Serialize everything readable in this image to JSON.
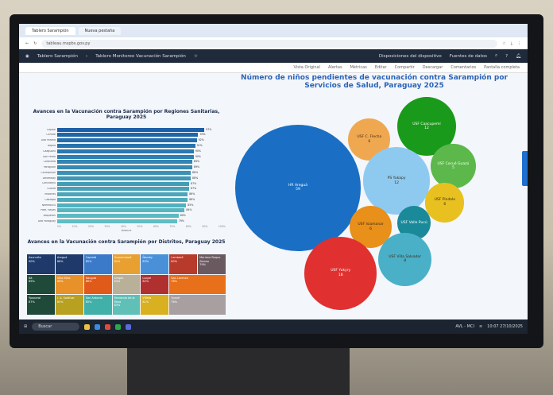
{
  "browser": {
    "tabs": [
      "Tablero Sarampión",
      "Nueva pestaña"
    ],
    "url": "tableau.mspbs.gov.py"
  },
  "toolbar": {
    "breadcrumb": [
      "Tablero Sarampión",
      "Tablero Monitoreo Vacunación Sarampión"
    ],
    "device_layouts": "Disposiciones del dispositivo",
    "data_sources": "Fuentes de datos"
  },
  "subtoolbar": [
    "Vista Original",
    "Alertas",
    "Métricas",
    "Editar",
    "Compartir",
    "Descargar",
    "Comentarios",
    "Pantalla completa"
  ],
  "bar_chart": {
    "type": "bar",
    "title": "Avances en la Vacunación contra Sarampión por Regiones Sanitarias, Paraguay 2025",
    "xlabel": "Avance",
    "xlim": [
      0,
      100
    ],
    "ticks": [
      "0%",
      "10%",
      "20%",
      "30%",
      "40%",
      "50%",
      "60%",
      "70%",
      "80%",
      "90%",
      "100%"
    ],
    "categories": [
      "Capital",
      "Central",
      "Alto Paraná",
      "Itapúa",
      "Caaguazú",
      "San Pedro",
      "Cordillera",
      "Paraguarí",
      "Concepción",
      "Amambay",
      "Canindeyú",
      "Guairá",
      "Misiones",
      "Caazapá",
      "Ñeembucú",
      "Pdte. Hayes",
      "Boquerón",
      "Alto Paraguay"
    ],
    "values": [
      97,
      93,
      92,
      91,
      90,
      90,
      89,
      89,
      88,
      88,
      87,
      87,
      86,
      86,
      85,
      84,
      80,
      79
    ],
    "color": "#1a5fa8"
  },
  "treemap": {
    "title": "Avances en la Vacunación contra Sarampión por Distritos, Paraguay 2025",
    "cells": [
      {
        "name": "Asunción",
        "pct": "90%",
        "color": "#1f3a6a"
      },
      {
        "name": "Areguá",
        "pct": "88%",
        "color": "#1f3a6a"
      },
      {
        "name": "Capiatá",
        "pct": "85%",
        "color": "#3a7ac8"
      },
      {
        "name": "Guarambaré",
        "pct": "84%",
        "color": "#e8a030"
      },
      {
        "name": "Ñemby",
        "pct": "83%",
        "color": "#4a90d8"
      },
      {
        "name": "Itá",
        "pct": "89%",
        "color": "#1f4a3a"
      },
      {
        "name": "Villa Elisa",
        "pct": "86%",
        "color": "#e8902a"
      },
      {
        "name": "Itauguá",
        "pct": "86%",
        "color": "#e05a1a"
      },
      {
        "name": "Limpio",
        "pct": "84%",
        "color": "#b8b098"
      },
      {
        "name": "Luque",
        "pct": "82%",
        "color": "#b03030"
      },
      {
        "name": "Ypacaraí",
        "pct": "87%",
        "color": "#1f4a3a"
      },
      {
        "name": "J. A. Saldívar",
        "pct": "85%",
        "color": "#b8a020"
      },
      {
        "name": "San Antonio",
        "pct": "85%",
        "color": "#40b0a8"
      },
      {
        "name": "Fernando de la Mora",
        "pct": "83%",
        "color": "#60c0b8"
      },
      {
        "name": "Villeta",
        "pct": "81%",
        "color": "#d8b020"
      },
      {
        "name": "Lambaré",
        "pct": "80%",
        "color": "#b83a2a"
      },
      {
        "name": "Mariano Roque Alonso",
        "pct": "79%",
        "color": "#6a5a60"
      },
      {
        "name": "San Lorenzo",
        "pct": "78%",
        "color": "#e8701a"
      },
      {
        "name": "Ypané",
        "pct": "76%",
        "color": "#a8a0a0"
      }
    ]
  },
  "bubble_chart": {
    "type": "bubble",
    "title": "Número de niños pendientes de vacunación contra Sarampión por Servicios de Salud, Paraguay 2025",
    "items": [
      {
        "name": "HR Areguá",
        "value": 59,
        "color": "#1a6fc4"
      },
      {
        "name": "USF Caacupemí",
        "value": 12,
        "color": "#1a9a1a"
      },
      {
        "name": "USF C. Flecha",
        "value": 6,
        "color": "#f0a850"
      },
      {
        "name": "PS Yukapy",
        "value": 12,
        "color": "#8ecaf0"
      },
      {
        "name": "USF Cocué Guazú",
        "value": 5,
        "color": "#5cb84a"
      },
      {
        "name": "USF Pindolo",
        "value": 6,
        "color": "#e8c020"
      },
      {
        "name": "USF Isiamanar",
        "value": 6,
        "color": "#e8901a"
      },
      {
        "name": "USF Valle Pucú",
        "value": "",
        "color": "#1a8a9a"
      },
      {
        "name": "USF Villa Salvador",
        "value": 8,
        "color": "#4ab0c8"
      },
      {
        "name": "USF Yukyry",
        "value": 18,
        "color": "#e03030"
      }
    ]
  },
  "taskbar": {
    "search": "Buscar",
    "notification": "AVL - MCI",
    "time": "10:07",
    "date": "27/10/2025"
  }
}
